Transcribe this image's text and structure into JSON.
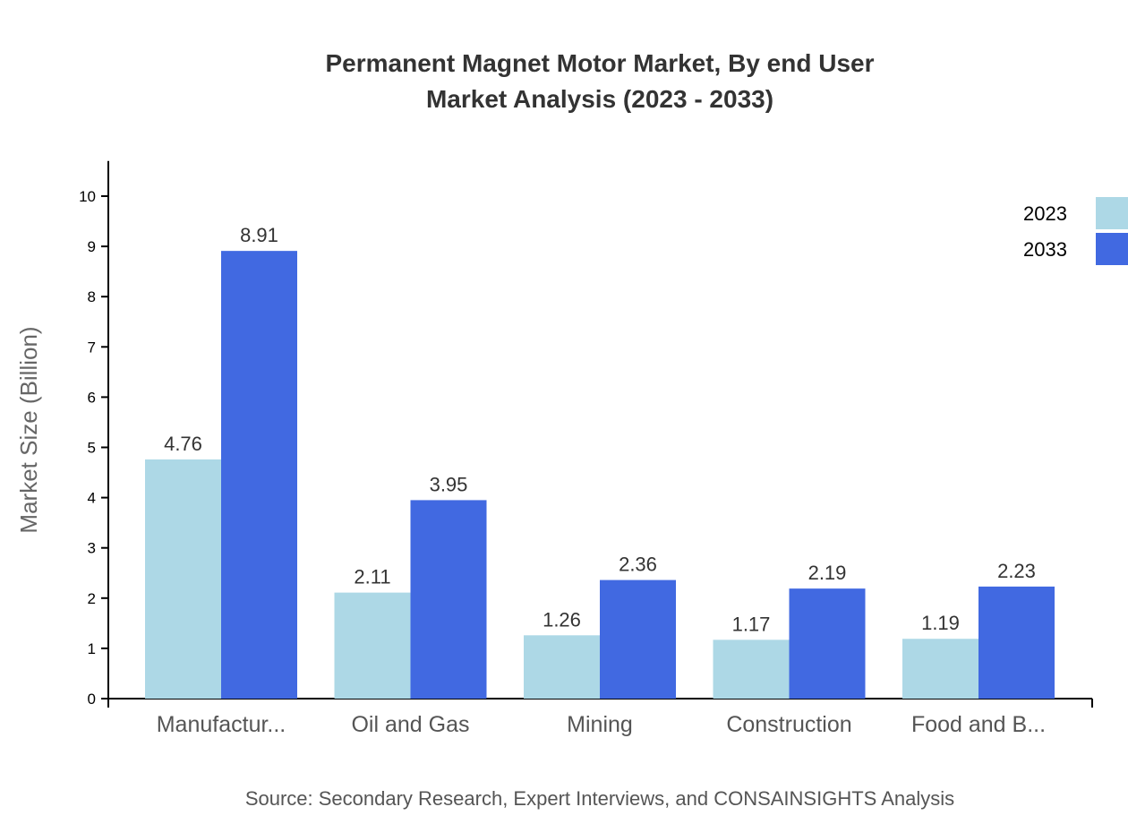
{
  "chart_data": {
    "type": "bar",
    "title": "Permanent Magnet Motor Market, By end User",
    "subtitle": "Market Analysis (2023 - 2033)",
    "xlabel": "",
    "ylabel": "Market Size (Billion)",
    "ylim": [
      0,
      10.7
    ],
    "yticks": [
      0,
      1,
      2,
      3,
      4,
      5,
      6,
      7,
      8,
      9,
      10
    ],
    "grid": false,
    "legend_position": "top-right",
    "categories": [
      "Manufactur...",
      "Oil and Gas",
      "Mining",
      "Construction",
      "Food and B..."
    ],
    "series": [
      {
        "name": "2023",
        "color": "#add8e6",
        "values": [
          4.76,
          2.11,
          1.26,
          1.17,
          1.19
        ]
      },
      {
        "name": "2033",
        "color": "#4169e1",
        "values": [
          8.91,
          3.95,
          2.36,
          2.19,
          2.23
        ]
      }
    ],
    "source": "Source: Secondary Research, Expert Interviews, and CONSAINSIGHTS Analysis"
  }
}
